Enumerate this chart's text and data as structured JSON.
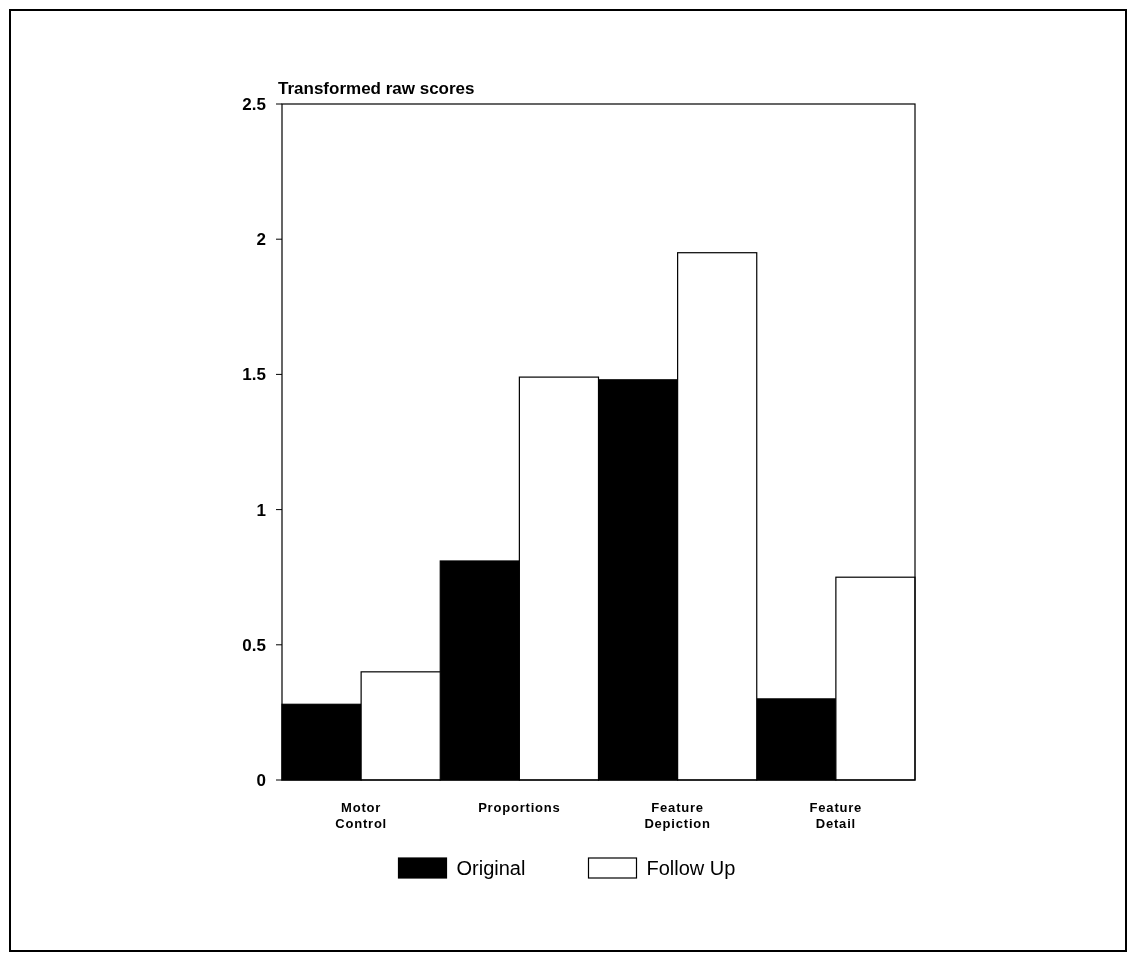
{
  "chart_data": {
    "type": "bar",
    "ylabel": "Transformed raw scores",
    "categories": [
      "Motor Control",
      "Proportions",
      "Feature Depiction",
      "Feature Detail"
    ],
    "series": [
      {
        "name": "Original",
        "color": "#000000",
        "values": [
          0.28,
          0.81,
          1.48,
          0.3
        ]
      },
      {
        "name": "Follow Up",
        "color": "#ffffff",
        "values": [
          0.4,
          1.49,
          1.95,
          0.75
        ]
      }
    ],
    "ylim": [
      0,
      2.5
    ],
    "yticks": [
      0,
      0.5,
      1,
      1.5,
      2,
      2.5
    ],
    "legend": "bottom",
    "grid": false
  }
}
